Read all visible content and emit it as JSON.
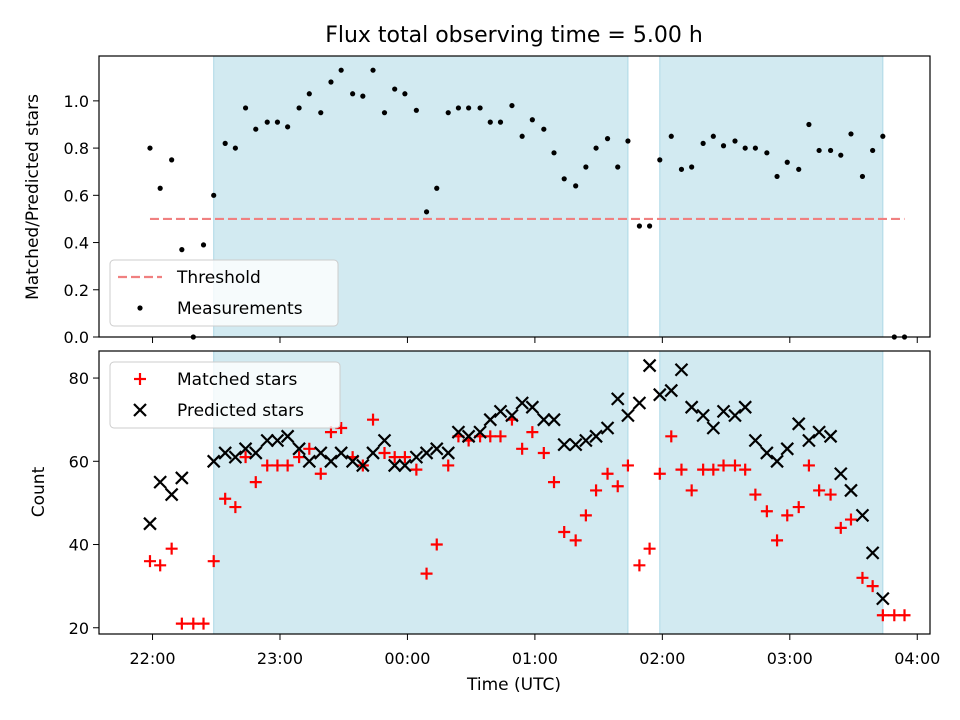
{
  "chart_data": {
    "title": "Flux total observing time = 5.00 h",
    "xlabel": "Time (UTC)",
    "x_unit": "hours (UTC, 24:00 = next midnight)",
    "xlim": [
      21.58,
      28.1
    ],
    "xticks": [
      {
        "value": 22,
        "label": "22:00"
      },
      {
        "value": 23,
        "label": "23:00"
      },
      {
        "value": 24,
        "label": "00:00"
      },
      {
        "value": 25,
        "label": "01:00"
      },
      {
        "value": 26,
        "label": "02:00"
      },
      {
        "value": 27,
        "label": "03:00"
      },
      {
        "value": 28,
        "label": "04:00"
      }
    ],
    "observing_intervals": [
      [
        22.48,
        25.73
      ],
      [
        25.98,
        27.73
      ]
    ],
    "shade_color": "#add8e6",
    "panels": [
      {
        "type": "scatter",
        "ylabel": "Matched/Predicted stars",
        "ylim": [
          0,
          1.19
        ],
        "yticks": [
          "0.0",
          "0.2",
          "0.4",
          "0.6",
          "0.8",
          "1.0"
        ],
        "legend": {
          "placement": "lower-left",
          "entries": [
            {
              "label": "Threshold",
              "color": "#f08080",
              "style": "dashed"
            },
            {
              "label": "Measurements",
              "color": "#000000",
              "style": "dot"
            }
          ]
        },
        "threshold": {
          "value": 0.5,
          "x_range": [
            21.98,
            27.9
          ],
          "color": "#f08080"
        },
        "series": [
          {
            "name": "Measurements",
            "color": "#000000",
            "x": [
              21.98,
              22.06,
              22.15,
              22.23,
              22.32,
              22.4,
              22.48,
              22.57,
              22.65,
              22.73,
              22.81,
              22.9,
              22.98,
              23.06,
              23.15,
              23.23,
              23.32,
              23.4,
              23.48,
              23.57,
              23.65,
              23.73,
              23.82,
              23.9,
              23.98,
              24.07,
              24.15,
              24.23,
              24.32,
              24.4,
              24.48,
              24.57,
              24.65,
              24.73,
              24.82,
              24.9,
              24.98,
              25.07,
              25.15,
              25.23,
              25.32,
              25.4,
              25.48,
              25.57,
              25.65,
              25.73,
              25.82,
              25.9,
              25.98,
              26.07,
              26.15,
              26.23,
              26.32,
              26.4,
              26.48,
              26.57,
              26.65,
              26.73,
              26.82,
              26.9,
              26.98,
              27.07,
              27.15,
              27.23,
              27.32,
              27.4,
              27.48,
              27.57,
              27.65,
              27.73,
              27.82,
              27.9
            ],
            "y": [
              0.8,
              0.63,
              0.75,
              0.37,
              0.0,
              0.39,
              0.6,
              0.82,
              0.8,
              0.97,
              0.88,
              0.91,
              0.91,
              0.89,
              0.97,
              1.03,
              0.95,
              1.08,
              1.13,
              1.03,
              1.02,
              1.13,
              0.95,
              1.05,
              1.03,
              0.96,
              0.53,
              0.63,
              0.95,
              0.97,
              0.97,
              0.97,
              0.91,
              0.91,
              0.98,
              0.85,
              0.92,
              0.88,
              0.78,
              0.67,
              0.64,
              0.72,
              0.8,
              0.84,
              0.72,
              0.83,
              0.47,
              0.47,
              0.75,
              0.85,
              0.71,
              0.72,
              0.82,
              0.85,
              0.81,
              0.83,
              0.8,
              0.8,
              0.78,
              0.68,
              0.74,
              0.71,
              0.9,
              0.79,
              0.79,
              0.77,
              0.86,
              0.68,
              0.79,
              0.85,
              0.0,
              0.0
            ]
          }
        ]
      },
      {
        "type": "scatter",
        "ylabel": "Count",
        "ylim": [
          18.5,
          86.5
        ],
        "yticks": [
          "20",
          "40",
          "60",
          "80"
        ],
        "legend": {
          "placement": "top-left",
          "entries": [
            {
              "label": "Matched stars",
              "color": "#ff0000",
              "style": "plus"
            },
            {
              "label": "Predicted stars",
              "color": "#000000",
              "style": "x"
            }
          ]
        },
        "series": [
          {
            "name": "Matched stars",
            "color": "#ff0000",
            "marker": "plus",
            "x": [
              21.98,
              22.06,
              22.15,
              22.23,
              22.32,
              22.4,
              22.48,
              22.57,
              22.65,
              22.73,
              22.81,
              22.9,
              22.98,
              23.06,
              23.15,
              23.23,
              23.32,
              23.4,
              23.48,
              23.57,
              23.65,
              23.73,
              23.82,
              23.9,
              23.98,
              24.07,
              24.15,
              24.23,
              24.32,
              24.4,
              24.48,
              24.57,
              24.65,
              24.73,
              24.82,
              24.9,
              24.98,
              25.07,
              25.15,
              25.23,
              25.32,
              25.4,
              25.48,
              25.57,
              25.65,
              25.73,
              25.82,
              25.9,
              25.98,
              26.07,
              26.15,
              26.23,
              26.32,
              26.4,
              26.48,
              26.57,
              26.65,
              26.73,
              26.82,
              26.9,
              26.98,
              27.07,
              27.15,
              27.23,
              27.32,
              27.4,
              27.48,
              27.57,
              27.65,
              27.73,
              27.82,
              27.9
            ],
            "y": [
              36,
              35,
              39,
              21,
              21,
              21,
              36,
              51,
              49,
              61,
              55,
              59,
              59,
              59,
              61,
              63,
              57,
              67,
              68,
              61,
              59,
              70,
              62,
              61,
              61,
              58,
              33,
              40,
              59,
              66,
              65,
              66,
              66,
              66,
              70,
              63,
              67,
              62,
              55,
              43,
              41,
              47,
              53,
              57,
              54,
              59,
              35,
              39,
              57,
              66,
              58,
              53,
              58,
              58,
              59,
              59,
              58,
              52,
              48,
              41,
              47,
              49,
              59,
              53,
              52,
              44,
              46,
              32,
              30,
              23,
              23,
              23
            ]
          },
          {
            "name": "Predicted stars",
            "color": "#000000",
            "marker": "x",
            "x": [
              21.98,
              22.06,
              22.15,
              22.23,
              22.48,
              22.57,
              22.65,
              22.73,
              22.81,
              22.9,
              22.98,
              23.06,
              23.15,
              23.23,
              23.32,
              23.4,
              23.48,
              23.57,
              23.65,
              23.73,
              23.82,
              23.9,
              23.98,
              24.07,
              24.15,
              24.23,
              24.32,
              24.4,
              24.48,
              24.57,
              24.65,
              24.73,
              24.82,
              24.9,
              24.98,
              25.07,
              25.15,
              25.23,
              25.32,
              25.4,
              25.48,
              25.57,
              25.65,
              25.73,
              25.82,
              25.9,
              25.98,
              26.07,
              26.15,
              26.23,
              26.32,
              26.4,
              26.48,
              26.57,
              26.65,
              26.73,
              26.82,
              26.9,
              26.98,
              27.07,
              27.15,
              27.23,
              27.32,
              27.4,
              27.48,
              27.57,
              27.65,
              27.73
            ],
            "y": [
              45,
              55,
              52,
              56,
              60,
              62,
              61,
              63,
              62,
              65,
              65,
              66,
              63,
              60,
              62,
              60,
              62,
              60,
              59,
              62,
              65,
              59,
              59,
              61,
              62,
              63,
              62,
              67,
              66,
              67,
              70,
              72,
              71,
              74,
              73,
              70,
              70,
              64,
              64,
              65,
              66,
              68,
              75,
              71,
              74,
              83,
              76,
              77,
              82,
              73,
              71,
              68,
              72,
              71,
              73,
              65,
              62,
              60,
              63,
              69,
              65,
              67,
              66,
              57,
              53,
              47,
              38,
              27
            ]
          }
        ]
      }
    ]
  }
}
